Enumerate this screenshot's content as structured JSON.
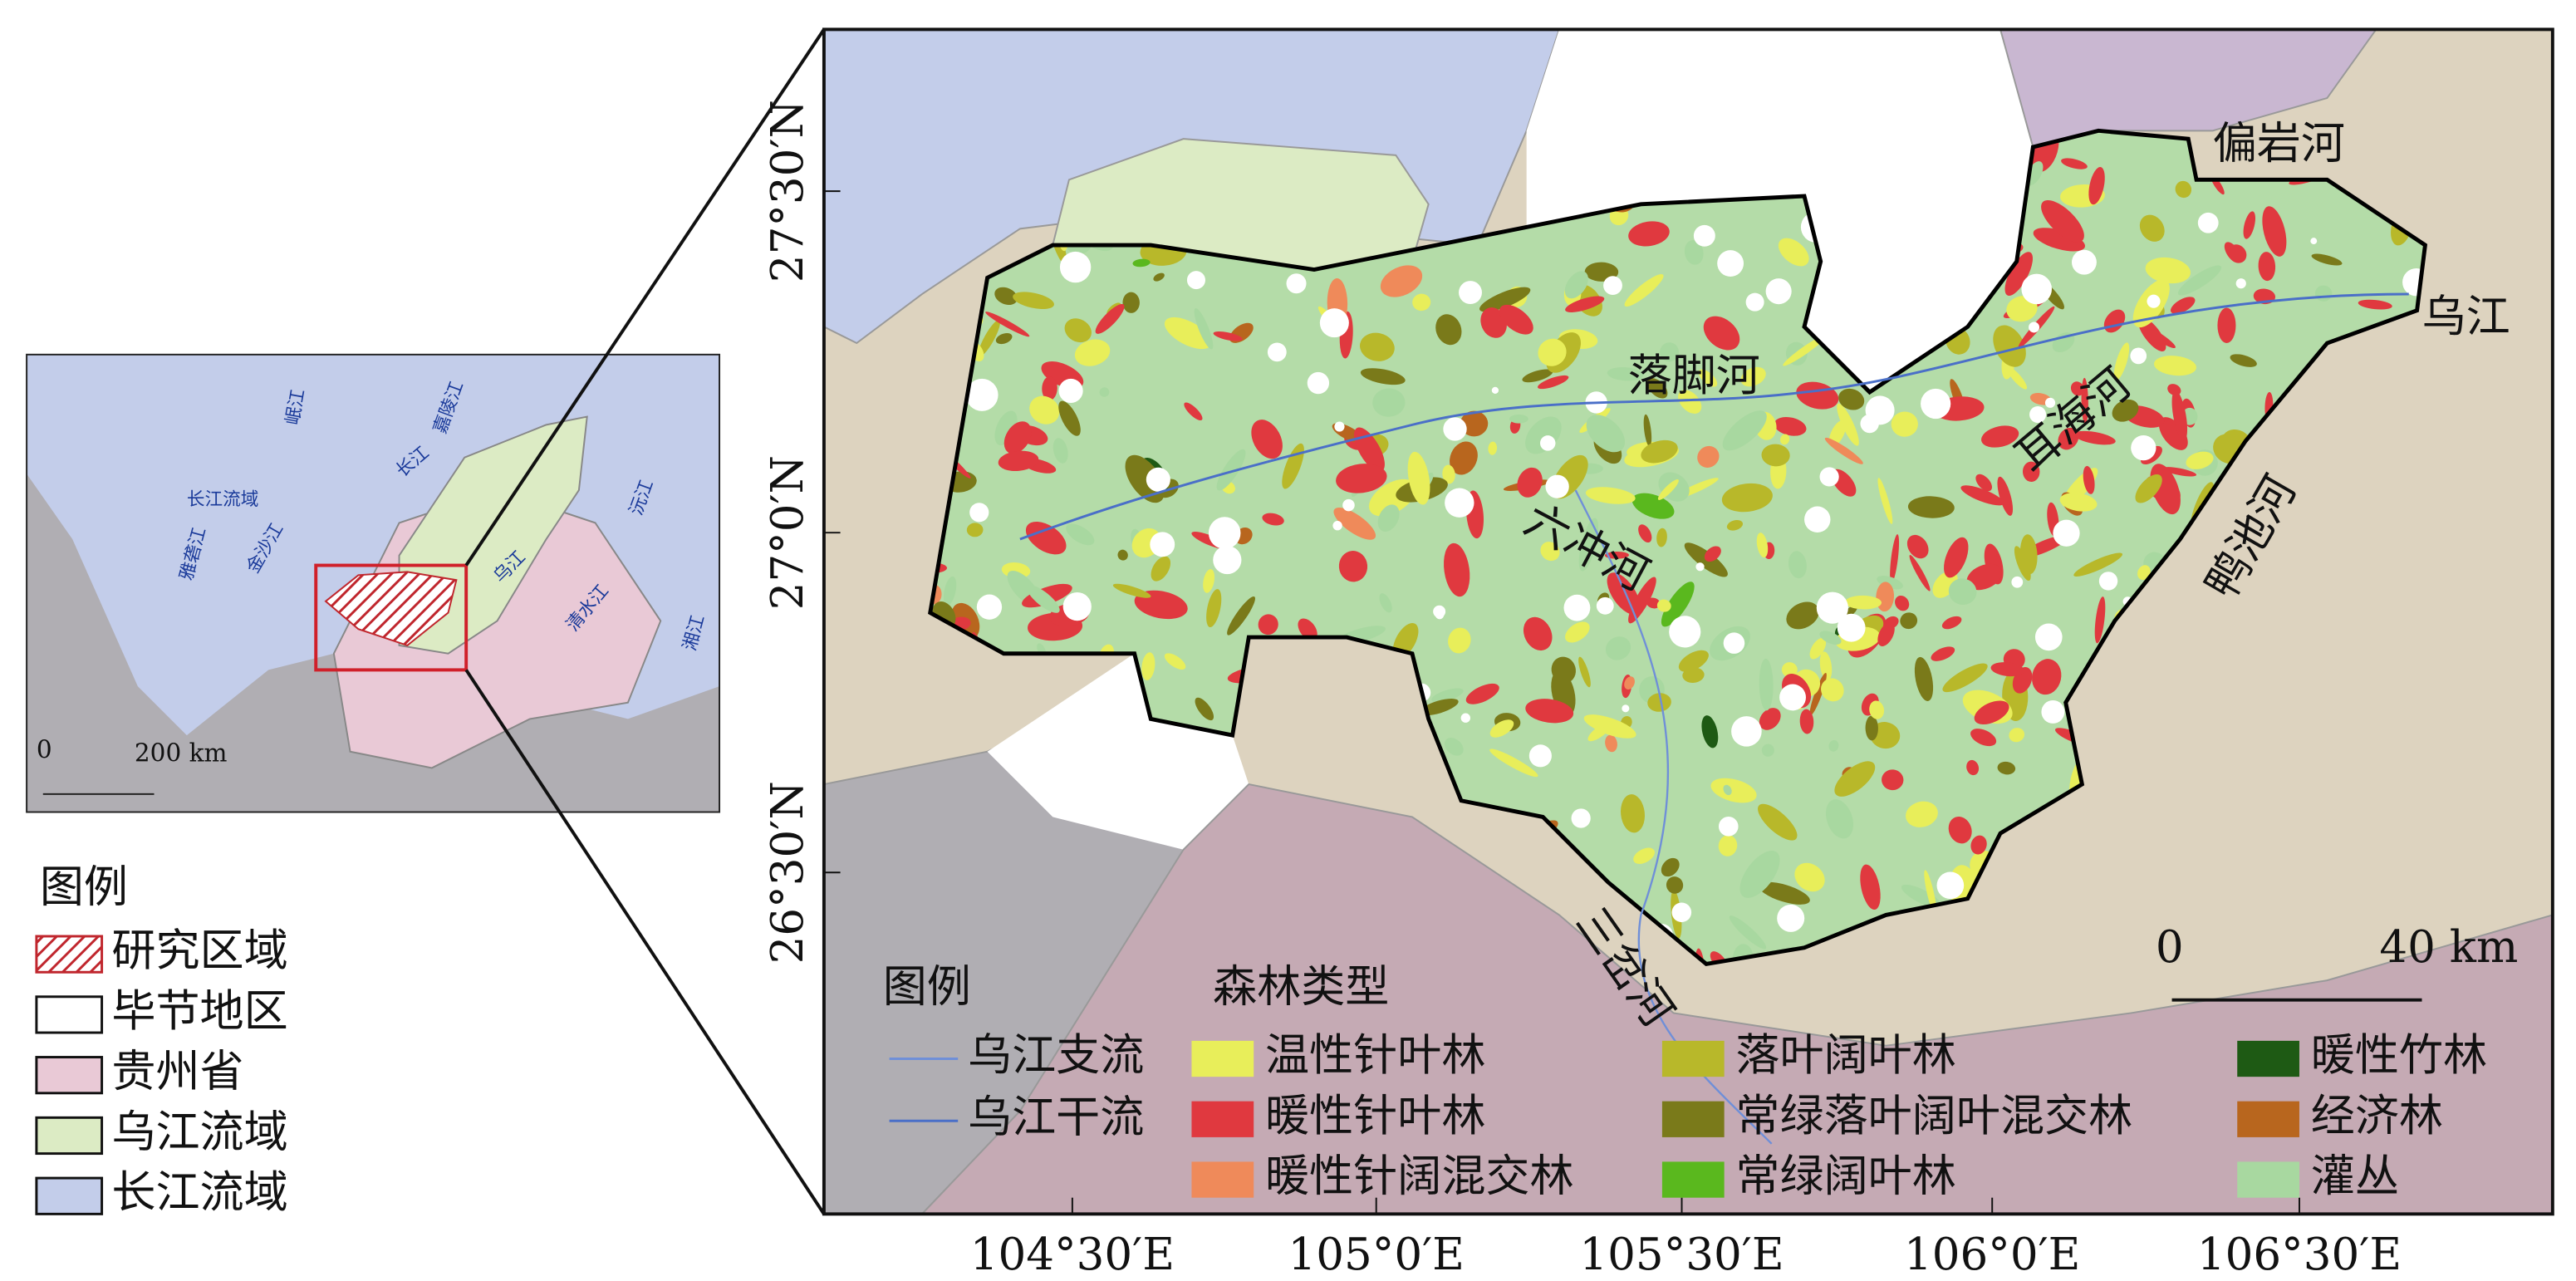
{
  "inset": {
    "labels": [
      "长江流域",
      "雅砻江",
      "金沙江",
      "岷江",
      "嘉陵江",
      "长江",
      "乌江",
      "沅江",
      "清水江",
      "湘江"
    ],
    "scale": [
      "0",
      "200 km"
    ]
  },
  "left_legend": {
    "title": "图例",
    "items": [
      {
        "label": "研究区域",
        "color": "#c0262d"
      },
      {
        "label": "毕节地区",
        "color": "#ffffff"
      },
      {
        "label": "贵州省",
        "color": "#e9c9d6"
      },
      {
        "label": "乌江流域",
        "color": "#dcebc4"
      },
      {
        "label": "长江流域",
        "color": "#c3cdea"
      }
    ]
  },
  "main_map": {
    "rivers": [
      "偏岩河",
      "乌江",
      "落脚河",
      "耳海河",
      "鸭池河",
      "六冲河",
      "三岔河"
    ],
    "lat_ticks": [
      "27°30′N",
      "27°0′N",
      "26°30′N"
    ],
    "lon_ticks": [
      "104°30′E",
      "105°0′E",
      "105°30′E",
      "106°0′E",
      "106°30′E"
    ],
    "scale": [
      "0",
      "40 km"
    ]
  },
  "legend": {
    "title": "图例",
    "river_items": [
      {
        "label": "乌江支流",
        "color": "#6f8fd8"
      },
      {
        "label": "乌江干流",
        "color": "#4a6fc8"
      }
    ],
    "forest_title": "森林类型",
    "forest_items": [
      {
        "label": "温性针叶林",
        "color": "#e8ee5a"
      },
      {
        "label": "暖性针叶林",
        "color": "#e0393f"
      },
      {
        "label": "暖性针阔混交林",
        "color": "#ef8a5a"
      },
      {
        "label": "落叶阔叶林",
        "color": "#b8b82a"
      },
      {
        "label": "常绿落叶阔叶混交林",
        "color": "#7a7a1a"
      },
      {
        "label": "常绿阔叶林",
        "color": "#5ab81e"
      },
      {
        "label": "暖性竹林",
        "color": "#1e5a14"
      },
      {
        "label": "经济林",
        "color": "#b8661e"
      },
      {
        "label": "灌丛",
        "color": "#a8d8a0"
      }
    ]
  }
}
